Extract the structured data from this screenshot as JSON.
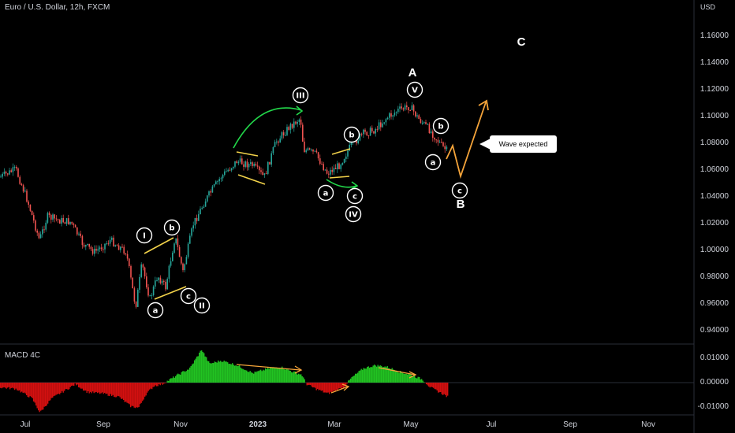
{
  "header": {
    "title": "Euro / U.S. Dollar, 12h, FXCM",
    "currency": "USD"
  },
  "indicator": {
    "name": "MACD 4C"
  },
  "price_axis": {
    "ticks": [
      "1.16000",
      "1.14000",
      "1.12000",
      "1.10000",
      "1.08000",
      "1.06000",
      "1.04000",
      "1.02000",
      "1.00000",
      "0.98000",
      "0.96000",
      "0.94000"
    ]
  },
  "macd_axis": {
    "ticks": [
      "0.01000",
      "0.00000",
      "-0.01000"
    ]
  },
  "time_axis": {
    "ticks": [
      {
        "label": "Jul",
        "bold": false
      },
      {
        "label": "Sep",
        "bold": false
      },
      {
        "label": "Nov",
        "bold": false
      },
      {
        "label": "2023",
        "bold": true
      },
      {
        "label": "Mar",
        "bold": false
      },
      {
        "label": "May",
        "bold": false
      },
      {
        "label": "Jul",
        "bold": false
      },
      {
        "label": "Sep",
        "bold": false
      },
      {
        "label": "Nov",
        "bold": false
      }
    ]
  },
  "annotations": {
    "callout": "Wave expected",
    "wave_labels": [
      "A",
      "B",
      "C"
    ],
    "circle_labels": [
      "I",
      "b",
      "a",
      "c",
      "II",
      "III",
      "b",
      "a",
      "c",
      "IV",
      "V",
      "b",
      "a",
      "c"
    ]
  },
  "colors": {
    "up": "#26a69a",
    "down": "#ef5350",
    "macd_pos": "#22c322",
    "macd_neg": "#d41010",
    "green_arrow": "#22d84a",
    "orange": "#f5a43a",
    "yellow_line": "#f2d24a"
  }
}
